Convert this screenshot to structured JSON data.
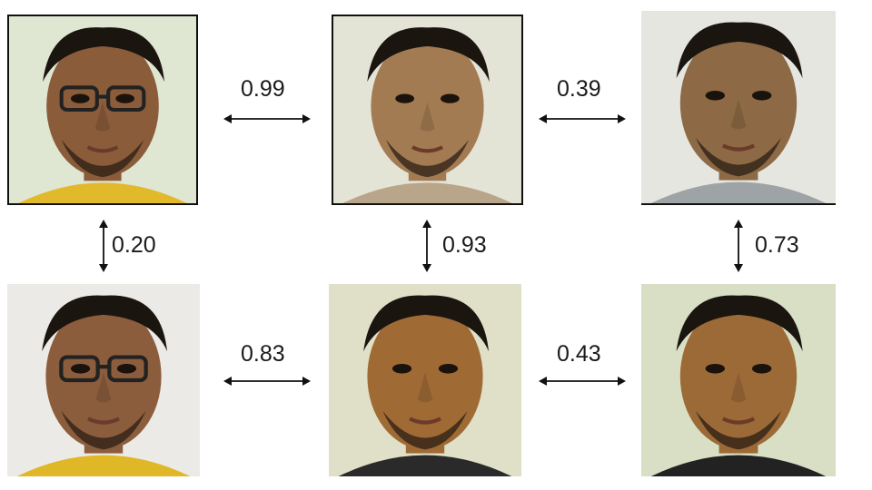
{
  "photos": [
    {
      "id": "r1c1",
      "skin": "#8a5c3a",
      "bg": "#dfe6d2",
      "shirt": "#e2b92b",
      "glasses": true
    },
    {
      "id": "r1c2",
      "skin": "#a37b52",
      "bg": "#e3e3d6",
      "shirt": "#b9a58a",
      "glasses": false
    },
    {
      "id": "r1c3",
      "skin": "#8d6a45",
      "bg": "#e4e6df",
      "shirt": "#9ea3a6",
      "glasses": false
    },
    {
      "id": "r2c1",
      "skin": "#8b5d3c",
      "bg": "#eceae6",
      "shirt": "#e0b726",
      "glasses": true
    },
    {
      "id": "r2c2",
      "skin": "#a06a35",
      "bg": "#dfe0c7",
      "shirt": "#2a2a2a",
      "glasses": false
    },
    {
      "id": "r2c3",
      "skin": "#9c6a37",
      "bg": "#d8dfc4",
      "shirt": "#222222",
      "glasses": false
    }
  ],
  "scores": {
    "r1_left": "0.99",
    "r1_right": "0.39",
    "col1": "0.20",
    "col2": "0.93",
    "col3": "0.73",
    "r2_left": "0.83",
    "r2_right": "0.43"
  }
}
